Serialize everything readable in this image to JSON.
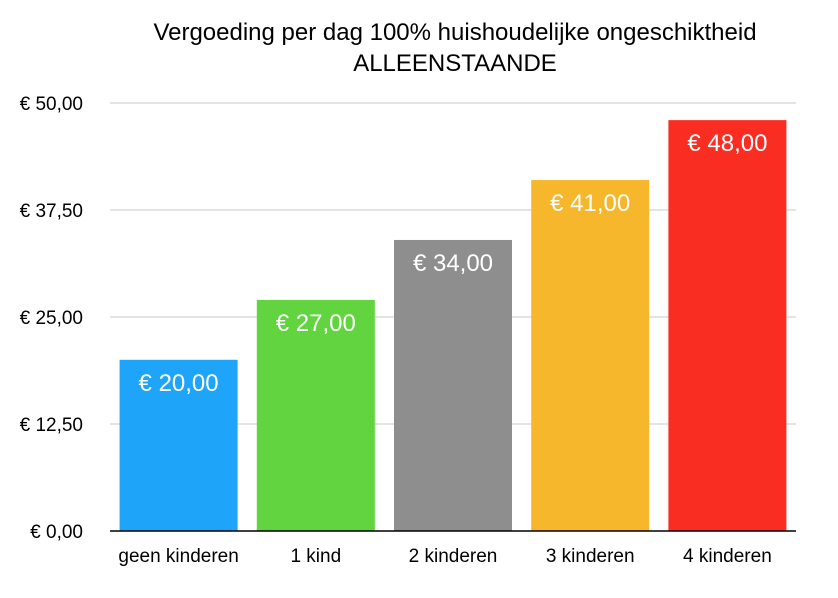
{
  "chart_data": {
    "type": "bar",
    "title": "Vergoeding per dag 100% huishoudelijke ongeschiktheid",
    "subtitle": "ALLEENSTAANDE",
    "categories": [
      "geen kinderen",
      "1 kind",
      "2 kinderen",
      "3 kinderen",
      "4 kinderen"
    ],
    "values": [
      20,
      27,
      34,
      41,
      48
    ],
    "data_labels": [
      "€ 20,00",
      "€ 27,00",
      "€ 34,00",
      "€ 41,00",
      "€ 48,00"
    ],
    "colors": [
      "#1ea4f9",
      "#61d43f",
      "#8e8e8e",
      "#f6b72d",
      "#fa2d22"
    ],
    "ylim": [
      0,
      50
    ],
    "yticks": [
      0,
      12.5,
      25,
      37.5,
      50
    ],
    "ytick_labels": [
      "€ 0,00",
      "€ 12,50",
      "€ 25,00",
      "€ 37,50",
      "€ 50,00"
    ],
    "xlabel": "",
    "ylabel": "",
    "grid": true,
    "legend": false
  }
}
